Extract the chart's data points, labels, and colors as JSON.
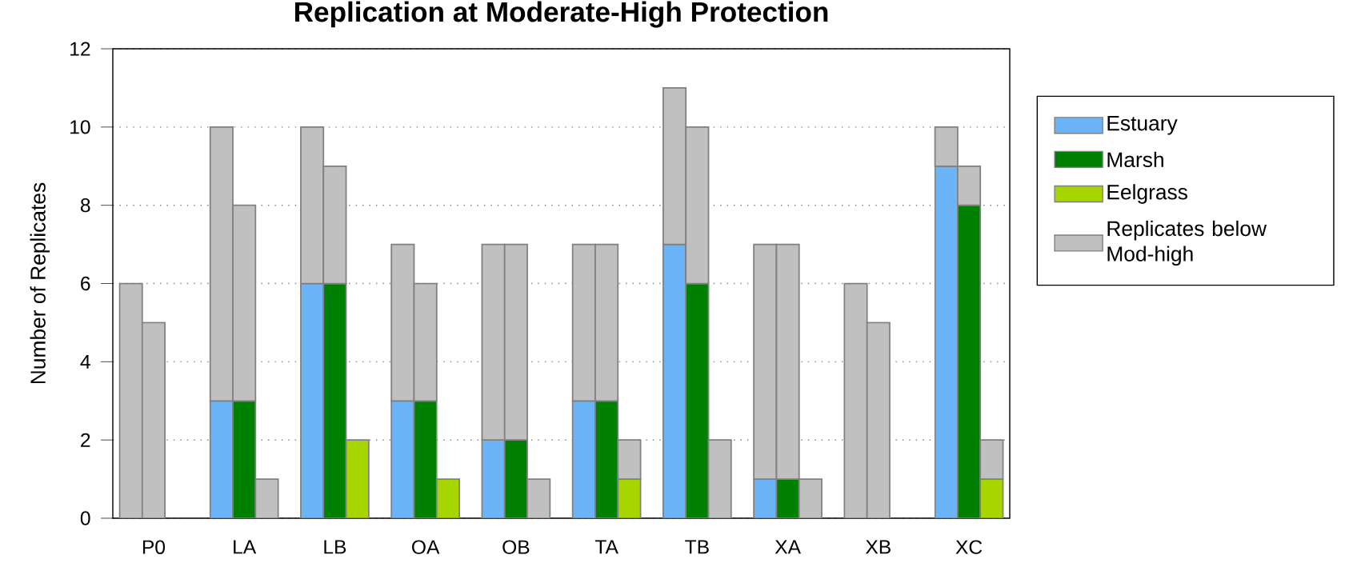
{
  "chart_data": {
    "type": "bar",
    "title": "Replication at Moderate-High Protection",
    "ylabel": "Number of Replicates",
    "categories": [
      null,
      "P0",
      null,
      null,
      null,
      "LA",
      null,
      null,
      null,
      "LB",
      null,
      null,
      null,
      "OA",
      null,
      null,
      null,
      "OB",
      null,
      null,
      null,
      "TA",
      null,
      null,
      null,
      "TB",
      null,
      null,
      null,
      "XA",
      null,
      null,
      null,
      "XB",
      null,
      null,
      null,
      "XC",
      null,
      null
    ],
    "series": [
      {
        "name": "Estuary",
        "color": "#6cb4f8",
        "values": [
          0,
          null,
          null,
          null,
          3,
          null,
          null,
          null,
          6,
          null,
          null,
          null,
          3,
          null,
          null,
          null,
          2,
          null,
          null,
          null,
          3,
          null,
          null,
          null,
          7,
          null,
          null,
          null,
          1,
          null,
          null,
          null,
          0,
          null,
          null,
          null,
          9,
          null,
          null,
          null
        ]
      },
      {
        "name": "Marsh",
        "color": "#008000",
        "values": [
          null,
          0,
          null,
          null,
          null,
          3,
          null,
          null,
          null,
          6,
          null,
          null,
          null,
          3,
          null,
          null,
          null,
          2,
          null,
          null,
          null,
          3,
          null,
          null,
          null,
          6,
          null,
          null,
          null,
          1,
          null,
          null,
          null,
          0,
          null,
          null,
          null,
          8,
          null,
          null
        ]
      },
      {
        "name": "Eelgrass",
        "color": "#a6d500",
        "values": [
          null,
          null,
          0,
          null,
          null,
          null,
          0,
          null,
          null,
          null,
          2,
          null,
          null,
          null,
          1,
          null,
          null,
          null,
          0,
          null,
          null,
          null,
          1,
          null,
          null,
          null,
          0,
          null,
          null,
          null,
          0,
          null,
          null,
          null,
          0,
          null,
          null,
          null,
          1,
          null
        ]
      },
      {
        "name": "Replicates below Mod-high",
        "color": "#c0c0c0",
        "values": [
          6,
          5,
          0,
          null,
          7,
          5,
          1,
          null,
          4,
          3,
          0,
          null,
          4,
          3,
          0,
          null,
          5,
          5,
          1,
          null,
          4,
          4,
          1,
          null,
          4,
          4,
          2,
          null,
          6,
          6,
          1,
          null,
          6,
          5,
          0,
          null,
          1,
          1,
          1,
          null
        ]
      }
    ],
    "stacked": true,
    "ylim": [
      0,
      12
    ],
    "yticks": [
      0,
      2,
      4,
      6,
      8,
      10,
      12
    ],
    "grid": "y",
    "legend": "right"
  }
}
